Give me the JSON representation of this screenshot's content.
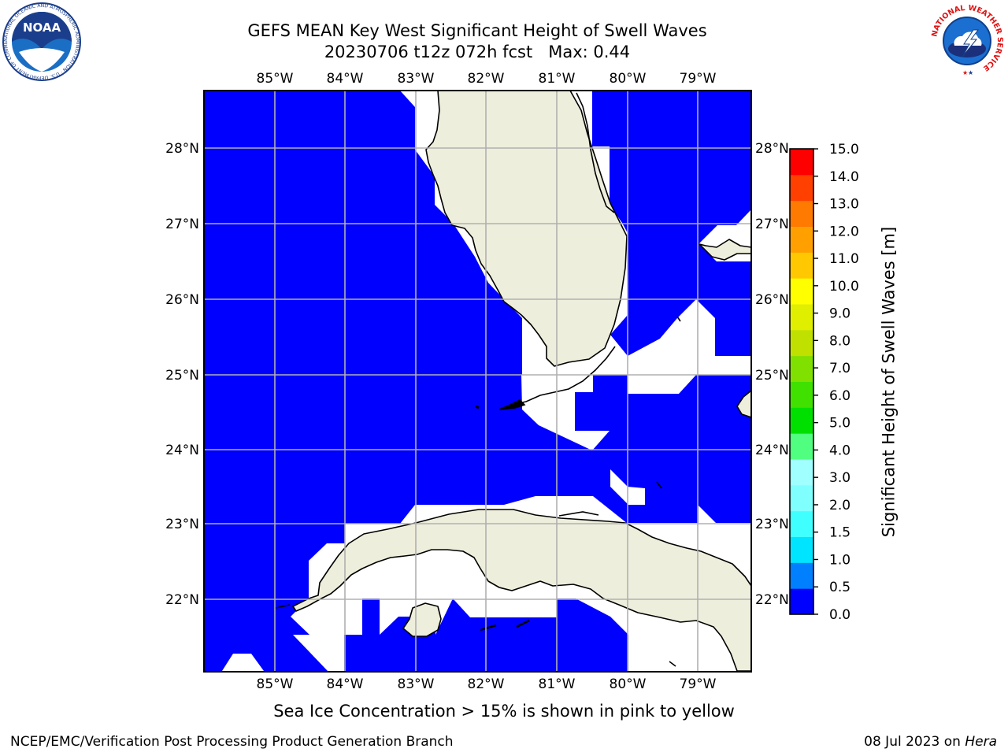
{
  "header": {
    "title_line1": "GEFS MEAN Key West Significant Height of Swell Waves",
    "title_line2": "20230706 t12z 072h fcst   Max: 0.44"
  },
  "logos": {
    "noaa": {
      "text": "NOAA",
      "ring_text": "NATIONAL OCEANIC AND ATMOSPHERIC ADMINISTRATION · U.S. DEPARTMENT OF COMMERCE"
    },
    "nws": {
      "ring_text": "NATIONAL WEATHER SERVICE"
    }
  },
  "map": {
    "longitude_labels": [
      "85°W",
      "84°W",
      "83°W",
      "82°W",
      "81°W",
      "80°W",
      "79°W"
    ],
    "latitude_labels": [
      "28°N",
      "27°N",
      "26°N",
      "25°N",
      "24°N",
      "23°N",
      "22°N"
    ],
    "ocean_color": "#0000ff",
    "no_data_color": "#ffffff",
    "land_color": "#eeeedc"
  },
  "colorbar": {
    "title": "Significant Height of Swell Waves [m]",
    "tick_labels": [
      "0.0",
      "0.5",
      "1.0",
      "1.5",
      "2.0",
      "3.0",
      "4.0",
      "5.0",
      "6.0",
      "7.0",
      "8.0",
      "9.0",
      "10.0",
      "11.0",
      "12.0",
      "13.0",
      "14.0",
      "15.0"
    ],
    "colors": [
      "#0000ff",
      "#0080ff",
      "#00e5ff",
      "#40ffff",
      "#80ffff",
      "#a0ffff",
      "#50ff80",
      "#00e000",
      "#40e000",
      "#80e000",
      "#c0e000",
      "#e0ee00",
      "#ffff00",
      "#ffc800",
      "#ffa000",
      "#ff7a00",
      "#ff4000",
      "#ff0000"
    ]
  },
  "note": "Sea Ice Concentration > 15% is shown in pink to yellow",
  "footer": {
    "left": "NCEP/EMC/Verification Post Processing Product Generation Branch",
    "right_date": "08 Jul 2023 on ",
    "right_host": "Hera"
  }
}
